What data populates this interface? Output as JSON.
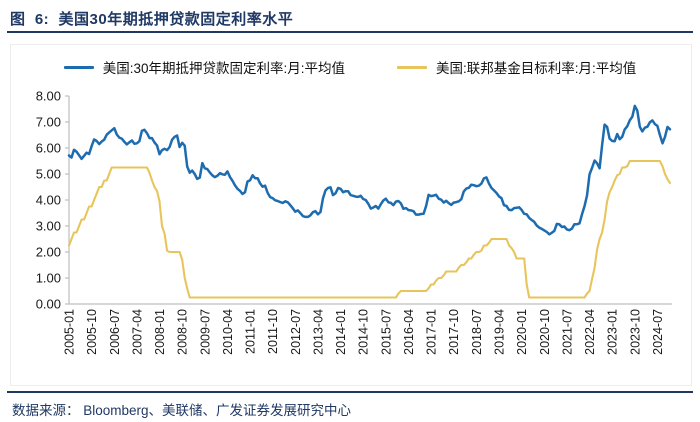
{
  "title": "图  6:  美国30年期抵押贷款固定利率水平",
  "footer": {
    "source_text": "数据来源： Bloomberg、美联储、广发证券发展研究中心"
  },
  "colors": {
    "accent_navy": "#1F3864",
    "mortgage_line": "#1E6CB0",
    "fed_funds_line": "#E8C55C",
    "axis": "#BFBFBF",
    "tick_text": "#1A1A1A"
  },
  "chart_data": {
    "type": "line",
    "title": "美国30年期抵押贷款固定利率水平",
    "xlabel": "",
    "ylabel": "",
    "ylim": [
      0,
      8
    ],
    "y_tick_step": 1,
    "y_tick_format": "2dp",
    "grid": false,
    "legend_position": "top",
    "x_start": "2005-01",
    "x_end": "2024-12",
    "frequency": "monthly",
    "x_tick_labels": [
      "2005-01",
      "2005-10",
      "2006-07",
      "2007-04",
      "2008-01",
      "2008-10",
      "2009-07",
      "2010-04",
      "2011-01",
      "2011-10",
      "2012-07",
      "2013-04",
      "2014-01",
      "2014-10",
      "2015-07",
      "2016-04",
      "2017-01",
      "2017-10",
      "2018-07",
      "2019-04",
      "2020-01",
      "2020-10",
      "2021-07",
      "2022-04",
      "2023-01",
      "2023-10",
      "2024-07"
    ],
    "x_tick_every_n_months": 9,
    "series": [
      {
        "name": "美国:30年期抵押贷款固定利率:月:平均值",
        "color": "#1E6CB0",
        "values": [
          5.71,
          5.63,
          5.93,
          5.86,
          5.72,
          5.58,
          5.7,
          5.82,
          5.77,
          6.07,
          6.33,
          6.27,
          6.15,
          6.25,
          6.32,
          6.51,
          6.6,
          6.68,
          6.76,
          6.52,
          6.4,
          6.36,
          6.24,
          6.14,
          6.22,
          6.29,
          6.16,
          6.18,
          6.26,
          6.66,
          6.7,
          6.57,
          6.38,
          6.38,
          6.21,
          6.1,
          5.76,
          5.92,
          5.97,
          5.92,
          6.04,
          6.32,
          6.43,
          6.48,
          6.04,
          6.2,
          6.09,
          5.29,
          5.05,
          5.13,
          5.0,
          4.81,
          4.86,
          5.42,
          5.22,
          5.19,
          5.06,
          4.95,
          4.88,
          4.93,
          5.03,
          4.99,
          4.97,
          5.1,
          4.89,
          4.74,
          4.56,
          4.43,
          4.35,
          4.23,
          4.3,
          4.71,
          4.76,
          4.95,
          4.84,
          4.84,
          4.64,
          4.51,
          4.55,
          4.27,
          4.11,
          4.07,
          3.99,
          3.96,
          3.92,
          3.89,
          3.95,
          3.91,
          3.8,
          3.68,
          3.55,
          3.6,
          3.5,
          3.38,
          3.35,
          3.35,
          3.41,
          3.53,
          3.57,
          3.45,
          3.54,
          4.07,
          4.37,
          4.46,
          4.49,
          4.19,
          4.26,
          4.46,
          4.43,
          4.3,
          4.34,
          4.34,
          4.19,
          4.16,
          4.13,
          4.12,
          4.16,
          4.04,
          4.0,
          3.86,
          3.67,
          3.71,
          3.77,
          3.67,
          3.84,
          3.98,
          4.05,
          3.91,
          3.89,
          3.8,
          3.94,
          3.96,
          3.87,
          3.66,
          3.69,
          3.61,
          3.6,
          3.57,
          3.44,
          3.44,
          3.46,
          3.47,
          3.77,
          4.2,
          4.15,
          4.17,
          4.2,
          4.05,
          4.01,
          3.9,
          3.97,
          3.88,
          3.81,
          3.9,
          3.92,
          3.95,
          4.03,
          4.33,
          4.44,
          4.47,
          4.59,
          4.57,
          4.53,
          4.55,
          4.63,
          4.83,
          4.87,
          4.64,
          4.46,
          4.37,
          4.27,
          4.14,
          4.07,
          3.8,
          3.77,
          3.62,
          3.61,
          3.69,
          3.7,
          3.72,
          3.62,
          3.47,
          3.45,
          3.31,
          3.23,
          3.16,
          3.02,
          2.94,
          2.89,
          2.83,
          2.77,
          2.68,
          2.74,
          2.81,
          3.08,
          3.06,
          2.96,
          2.98,
          2.87,
          2.84,
          2.9,
          3.07,
          3.07,
          3.1,
          3.45,
          3.76,
          4.17,
          4.98,
          5.23,
          5.52,
          5.41,
          5.22,
          6.11,
          6.9,
          6.81,
          6.36,
          6.27,
          6.26,
          6.54,
          6.34,
          6.43,
          6.71,
          6.84,
          7.07,
          7.2,
          7.62,
          7.44,
          6.82,
          6.64,
          6.78,
          6.82,
          6.99,
          7.06,
          6.92,
          6.85,
          6.5,
          6.18,
          6.43,
          6.81,
          6.72
        ]
      },
      {
        "name": "美国:联邦基金目标利率:月:平均值",
        "color": "#E8C55C",
        "values": [
          2.25,
          2.5,
          2.75,
          2.75,
          3.0,
          3.25,
          3.25,
          3.5,
          3.75,
          3.75,
          4.0,
          4.25,
          4.5,
          4.5,
          4.75,
          4.75,
          5.0,
          5.25,
          5.25,
          5.25,
          5.25,
          5.25,
          5.25,
          5.25,
          5.25,
          5.25,
          5.25,
          5.25,
          5.25,
          5.25,
          5.25,
          5.25,
          5.05,
          4.75,
          4.5,
          4.35,
          3.95,
          3.0,
          2.7,
          2.05,
          2.0,
          2.0,
          2.0,
          2.0,
          2.0,
          1.7,
          1.0,
          0.6,
          0.25,
          0.25,
          0.25,
          0.25,
          0.25,
          0.25,
          0.25,
          0.25,
          0.25,
          0.25,
          0.25,
          0.25,
          0.25,
          0.25,
          0.25,
          0.25,
          0.25,
          0.25,
          0.25,
          0.25,
          0.25,
          0.25,
          0.25,
          0.25,
          0.25,
          0.25,
          0.25,
          0.25,
          0.25,
          0.25,
          0.25,
          0.25,
          0.25,
          0.25,
          0.25,
          0.25,
          0.25,
          0.25,
          0.25,
          0.25,
          0.25,
          0.25,
          0.25,
          0.25,
          0.25,
          0.25,
          0.25,
          0.25,
          0.25,
          0.25,
          0.25,
          0.25,
          0.25,
          0.25,
          0.25,
          0.25,
          0.25,
          0.25,
          0.25,
          0.25,
          0.25,
          0.25,
          0.25,
          0.25,
          0.25,
          0.25,
          0.25,
          0.25,
          0.25,
          0.25,
          0.25,
          0.25,
          0.25,
          0.25,
          0.25,
          0.25,
          0.25,
          0.25,
          0.25,
          0.25,
          0.25,
          0.25,
          0.25,
          0.4,
          0.5,
          0.5,
          0.5,
          0.5,
          0.5,
          0.5,
          0.5,
          0.5,
          0.5,
          0.5,
          0.5,
          0.6,
          0.75,
          0.75,
          0.9,
          1.0,
          1.0,
          1.1,
          1.25,
          1.25,
          1.25,
          1.25,
          1.25,
          1.4,
          1.5,
          1.5,
          1.6,
          1.75,
          1.75,
          1.9,
          2.0,
          2.0,
          2.05,
          2.25,
          2.25,
          2.35,
          2.5,
          2.5,
          2.5,
          2.5,
          2.5,
          2.5,
          2.5,
          2.25,
          2.15,
          2.0,
          1.75,
          1.75,
          1.75,
          1.75,
          0.75,
          0.25,
          0.25,
          0.25,
          0.25,
          0.25,
          0.25,
          0.25,
          0.25,
          0.25,
          0.25,
          0.25,
          0.25,
          0.25,
          0.25,
          0.25,
          0.25,
          0.25,
          0.25,
          0.25,
          0.25,
          0.25,
          0.25,
          0.25,
          0.4,
          0.5,
          0.95,
          1.4,
          2.1,
          2.5,
          2.75,
          3.25,
          3.95,
          4.3,
          4.5,
          4.75,
          4.95,
          5.0,
          5.25,
          5.25,
          5.3,
          5.5,
          5.5,
          5.5,
          5.5,
          5.5,
          5.5,
          5.5,
          5.5,
          5.5,
          5.5,
          5.5,
          5.5,
          5.5,
          5.3,
          5.0,
          4.8,
          4.65
        ]
      }
    ]
  }
}
